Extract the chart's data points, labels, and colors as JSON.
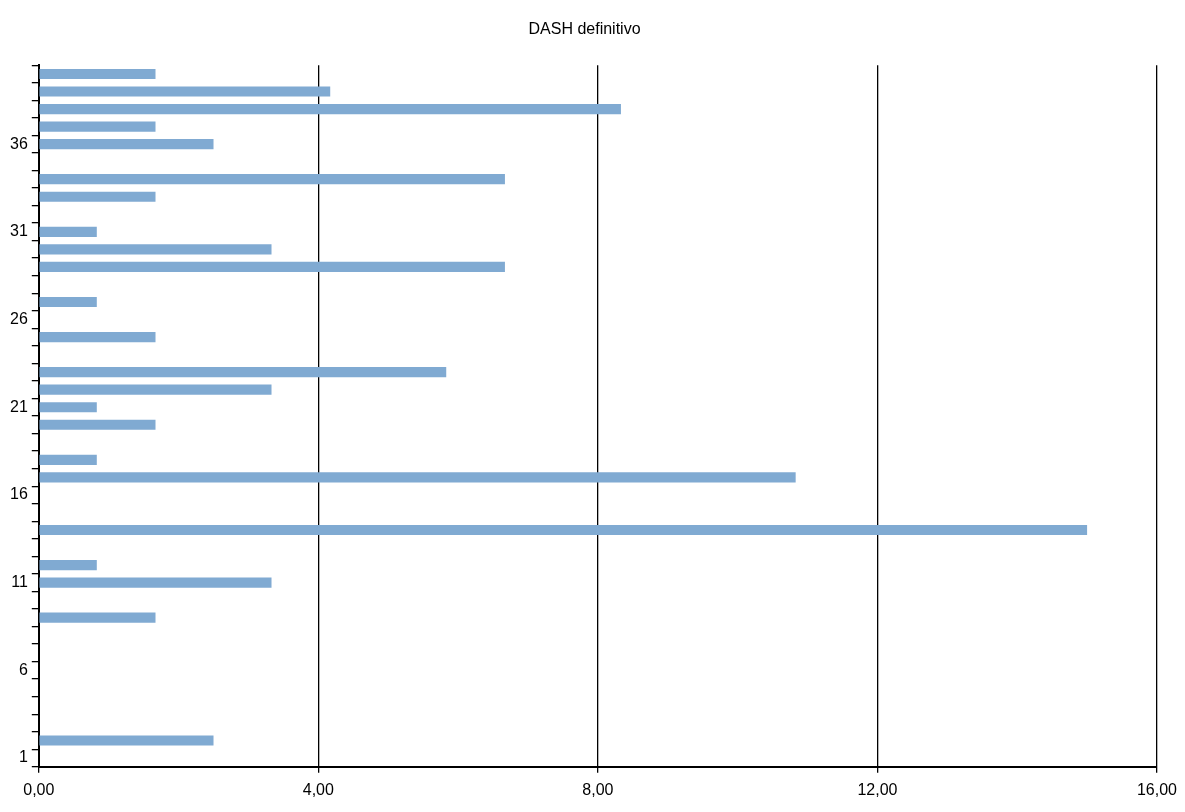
{
  "chart_data": {
    "type": "bar",
    "orientation": "horizontal",
    "title": "DASH definitivo",
    "categories": [
      null,
      null,
      null,
      null,
      "36",
      null,
      null,
      null,
      null,
      "31",
      null,
      null,
      null,
      null,
      "26",
      null,
      null,
      null,
      null,
      "21",
      null,
      null,
      null,
      null,
      "16",
      null,
      null,
      null,
      null,
      "11",
      null,
      null,
      null,
      null,
      "6",
      null,
      null,
      null,
      null,
      "1"
    ],
    "values": [
      1.67,
      4.17,
      8.33,
      1.67,
      2.5,
      0,
      6.67,
      1.67,
      0,
      0.83,
      3.33,
      6.67,
      0,
      0.83,
      0,
      1.67,
      0,
      5.83,
      3.33,
      0.83,
      1.67,
      0,
      0.83,
      10.83,
      0,
      0,
      15,
      0,
      0.83,
      3.33,
      0,
      1.67,
      0,
      0,
      0,
      0,
      0,
      0,
      2.5,
      0
    ],
    "color": "#80aad2",
    "xlim": [
      0,
      16
    ],
    "xticks": [
      {
        "value": 0,
        "label": "0,00"
      },
      {
        "value": 4,
        "label": "4,00"
      },
      {
        "value": 8,
        "label": "8,00"
      },
      {
        "value": 12,
        "label": "12,00"
      },
      {
        "value": 16,
        "label": "16,00"
      }
    ],
    "grid": "x",
    "legend": false
  }
}
